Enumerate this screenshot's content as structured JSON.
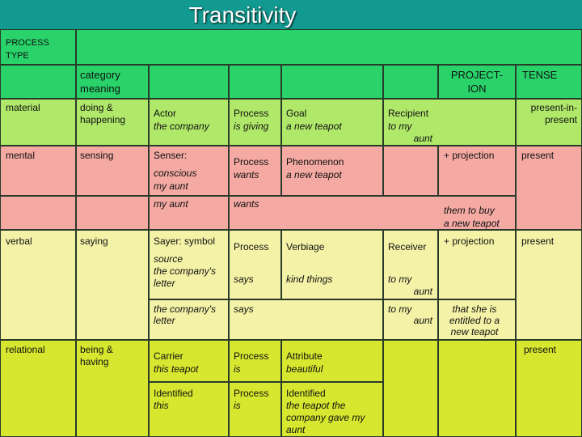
{
  "title": "Transitivity",
  "header": {
    "process_type": [
      "PROCESS",
      "TYPE"
    ],
    "category_meaning": [
      "category",
      "meaning"
    ],
    "projection": [
      "PROJECT-",
      "ION"
    ],
    "tense": "TENSE"
  },
  "material": {
    "type": "material",
    "meaning": [
      "doing &",
      "happening"
    ],
    "actor": [
      "Actor",
      "the company"
    ],
    "process": [
      "Process",
      "is giving"
    ],
    "goal": [
      "Goal",
      "a new teapot"
    ],
    "recipient": [
      "Recipient",
      "to my",
      "aunt"
    ],
    "tense": [
      "present-in-",
      "present"
    ]
  },
  "mental": {
    "type": "mental",
    "meaning": "sensing",
    "senser": "Senser:",
    "senser_value": [
      "conscious",
      "my aunt"
    ],
    "process": [
      "Process",
      "wants"
    ],
    "phenomenon": [
      "Phenomenon",
      "a new teapot"
    ],
    "projection": "+ projection",
    "tense": "present",
    "example_senser": "my aunt",
    "example_process": "wants",
    "example_projection": [
      "them to buy",
      "a new teapot"
    ]
  },
  "verbal": {
    "type": "verbal",
    "meaning": "saying",
    "sayer": "Sayer: symbol",
    "sayer_value": [
      "source",
      "the company's",
      "letter"
    ],
    "process": "Process",
    "process_value": "says",
    "verbiage": "Verbiage",
    "verbiage_value": "kind things",
    "receiver": "Receiver",
    "receiver_value": [
      "to my",
      "aunt"
    ],
    "projection": "+ projection",
    "tense": "present",
    "example_sayer": [
      "the company's",
      "letter"
    ],
    "example_process": "says",
    "example_receiver": [
      "to my",
      "aunt"
    ],
    "example_projection": [
      "that she is",
      "entitled to a",
      "new teapot"
    ]
  },
  "relational": {
    "type": "relational",
    "meaning": [
      "being &",
      "having"
    ],
    "carrier": [
      "Carrier",
      "this teapot"
    ],
    "process1": [
      "Process",
      "is"
    ],
    "attribute": [
      "Attribute",
      "beautiful"
    ],
    "tense": "present",
    "identified1": [
      "Identified",
      "this"
    ],
    "process2": [
      "Process",
      "is"
    ],
    "identified2": [
      "Identified",
      "the teapot the",
      "company gave my",
      "aunt"
    ]
  }
}
